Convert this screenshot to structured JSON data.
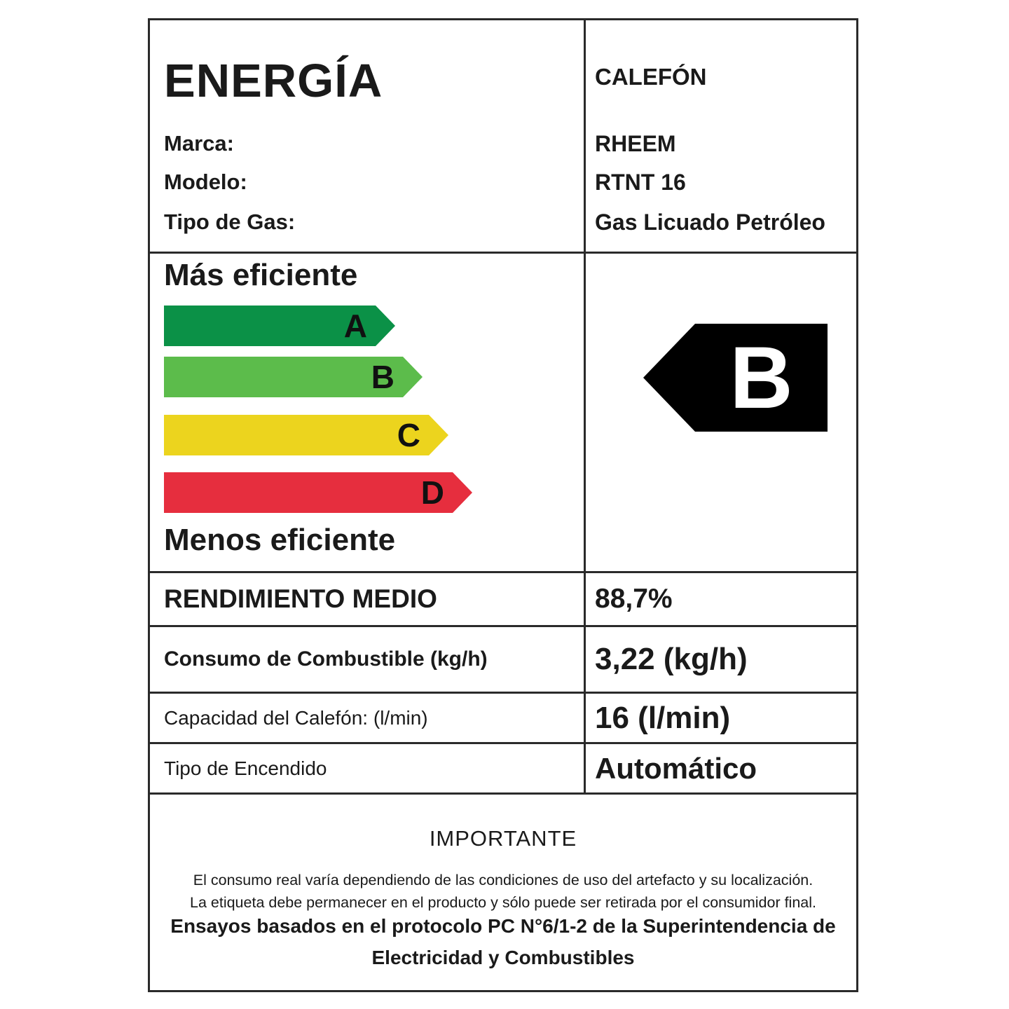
{
  "header": {
    "title": "ENERGÍA",
    "product_type": "CALEFÓN",
    "fields": [
      {
        "label": "Marca:",
        "value": "RHEEM"
      },
      {
        "label": "Modelo:",
        "value": "RTNT 16"
      },
      {
        "label": "Tipo de Gas:",
        "value": "Gas Licuado Petróleo"
      }
    ]
  },
  "efficiency": {
    "more_label": "Más eficiente",
    "less_label": "Menos eficiente",
    "classes": [
      {
        "grade": "A",
        "color": "#0b9147"
      },
      {
        "grade": "B",
        "color": "#5cbc4b"
      },
      {
        "grade": "C",
        "color": "#ecd41e"
      },
      {
        "grade": "D",
        "color": "#e62e3e"
      }
    ],
    "rating": {
      "grade": "B",
      "color": "#000000"
    }
  },
  "specs": [
    {
      "label": "RENDIMIENTO MEDIO",
      "value": "88,7%"
    },
    {
      "label": "Consumo de Combustible (kg/h)",
      "value": "3,22 (kg/h)"
    },
    {
      "label": "Capacidad del Calefón: (l/min)",
      "value": "16 (l/min)"
    },
    {
      "label": "Tipo de Encendido",
      "value": "Automático"
    }
  ],
  "notice": {
    "heading": "IMPORTANTE",
    "lines": [
      "El consumo real varía dependiendo de las condiciones de uso del artefacto y su localización.",
      "La etiqueta debe permanecer en el producto y sólo puede ser retirada por el consumidor final."
    ],
    "bold_lines": [
      "Ensayos basados en el protocolo PC N°6/1-2 de la Superintendencia de",
      "Electricidad y Combustibles"
    ]
  }
}
